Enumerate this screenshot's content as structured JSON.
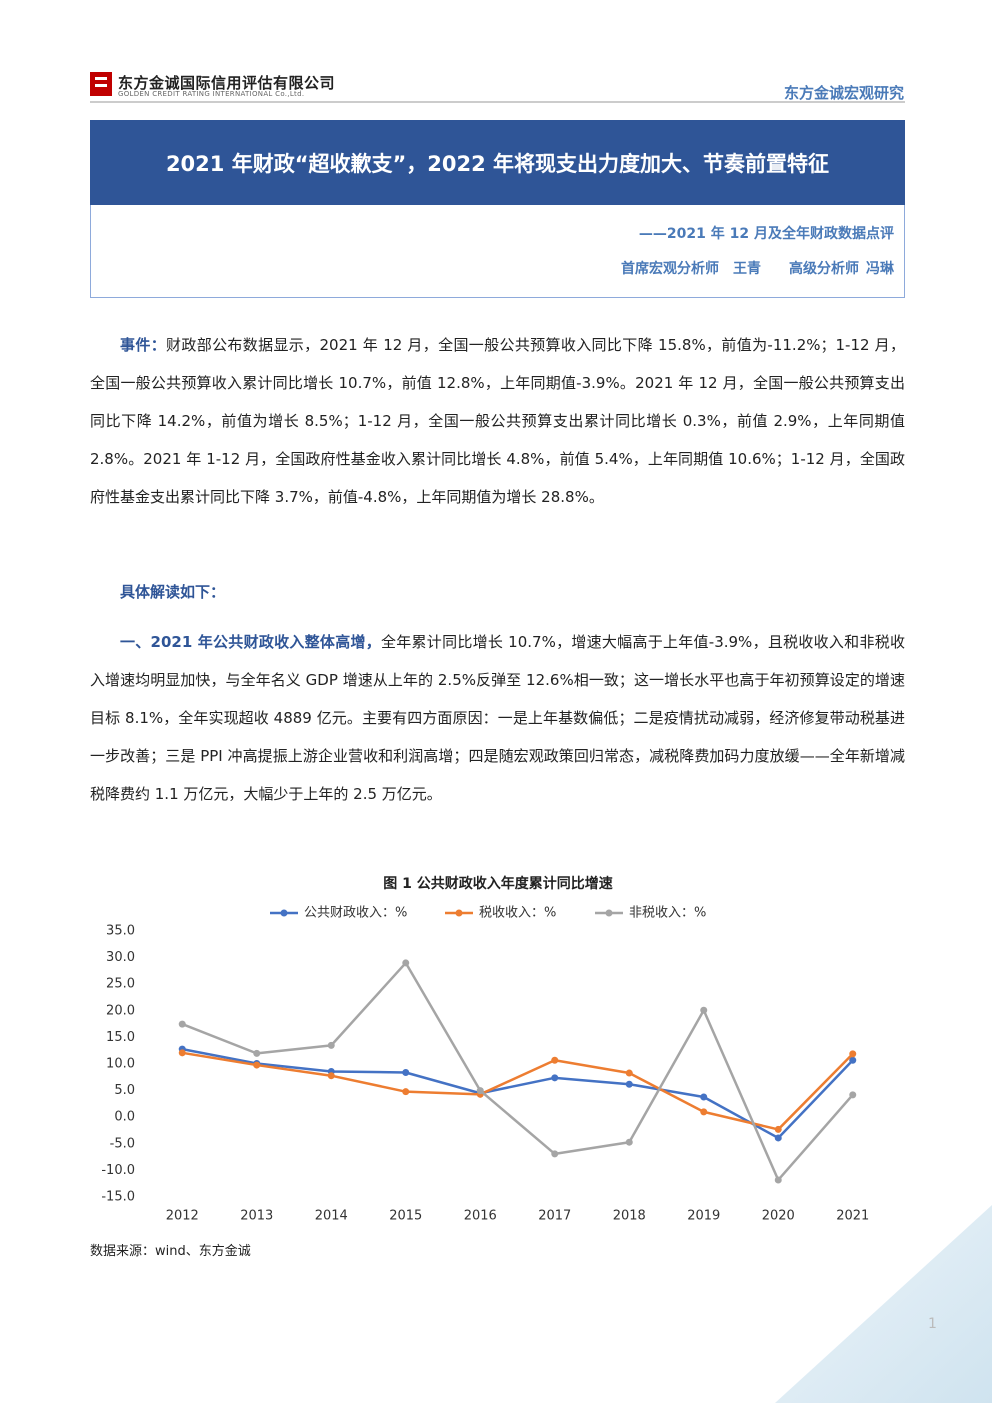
{
  "header": {
    "company_cn": "东方金诚国际信用评估有限公司",
    "company_en": "GOLDEN CREDIT RATING INTERNATIONAL Co.,Ltd.",
    "series": "东方金诚宏观研究"
  },
  "title": "2021 年财政“超收歉支”，2022 年将现支出力度加大、节奏前置特征",
  "subtitle": "——2021 年 12 月及全年财政数据点评",
  "authors": [
    {
      "role": "首席宏观分析师",
      "name": "王青"
    },
    {
      "role": "高级分析师",
      "name": "冯琳"
    }
  ],
  "paragraphs": [
    {
      "lead": "事件：",
      "text": "财政部公布数据显示，2021 年 12 月，全国一般公共预算收入同比下降 15.8%，前值为-11.2%；1-12 月，全国一般公共预算收入累计同比增长 10.7%，前值 12.8%，上年同期值-3.9%。2021 年 12 月，全国一般公共预算支出同比下降 14.2%，前值为增长 8.5%；1-12 月，全国一般公共预算支出累计同比增长 0.3%，前值 2.9%，上年同期值 2.8%。2021 年 1-12 月，全国政府性基金收入累计同比增长 4.8%，前值 5.4%，上年同期值 10.6%；1-12 月，全国政府性基金支出累计同比下降 3.7%，前值-4.8%，上年同期值为增长 28.8%。"
    },
    {
      "lead": "具体解读如下："
    },
    {
      "lead": "一、2021 年公共财政收入整体高增，",
      "text": "全年累计同比增长 10.7%，增速大幅高于上年值-3.9%，且税收收入和非税收入增速均明显加快，与全年名义 GDP 增速从上年的 2.5%反弹至 12.6%相一致；这一增长水平也高于年初预算设定的增速目标 8.1%，全年实现超收 4889 亿元。主要有四方面原因：一是上年基数偏低；二是疫情扰动减弱，经济修复带动税基进一步改善；三是 PPI 冲高提振上游企业营收和利润高增；四是随宏观政策回归常态，减税降费加码力度放缓——全年新增减税降费约 1.1 万亿元，大幅少于上年的 2.5 万亿元。"
    }
  ],
  "chart_data": {
    "type": "line",
    "title": "图 1  公共财政收入年度累计同比增速",
    "categories": [
      "2012",
      "2013",
      "2014",
      "2015",
      "2016",
      "2017",
      "2018",
      "2019",
      "2020",
      "2021"
    ],
    "series": [
      {
        "name": "公共财政收入：%",
        "color": "#4472c4",
        "values": [
          12.8,
          10.1,
          8.6,
          8.4,
          4.5,
          7.4,
          6.2,
          3.8,
          -3.9,
          10.7
        ]
      },
      {
        "name": "税收收入：%",
        "color": "#ed7d31",
        "values": [
          12.1,
          9.8,
          7.8,
          4.8,
          4.3,
          10.7,
          8.3,
          1.0,
          -2.3,
          11.9
        ]
      },
      {
        "name": "非税收入：%",
        "color": "#a5a5a5",
        "values": [
          17.5,
          12.0,
          13.5,
          29.0,
          5.0,
          -6.9,
          -4.7,
          20.1,
          -11.8,
          4.2
        ]
      }
    ],
    "ylim": [
      -15,
      35
    ],
    "yticks": [
      {
        "value": 35,
        "label": "35.0"
      },
      {
        "value": 30,
        "label": "30.0"
      },
      {
        "value": 25,
        "label": "25.0"
      },
      {
        "value": 20,
        "label": "20.0"
      },
      {
        "value": 15,
        "label": "15.0"
      },
      {
        "value": 10,
        "label": "10.0"
      },
      {
        "value": 5,
        "label": "5.0"
      },
      {
        "value": 0,
        "label": "0.0"
      },
      {
        "value": -5,
        "label": "-5.0"
      },
      {
        "value": -10,
        "label": "-10.0"
      },
      {
        "value": -15,
        "label": "-15.0"
      }
    ],
    "grid": false,
    "legend": "top"
  },
  "source": "数据来源：wind、东方金诚",
  "page": "1"
}
